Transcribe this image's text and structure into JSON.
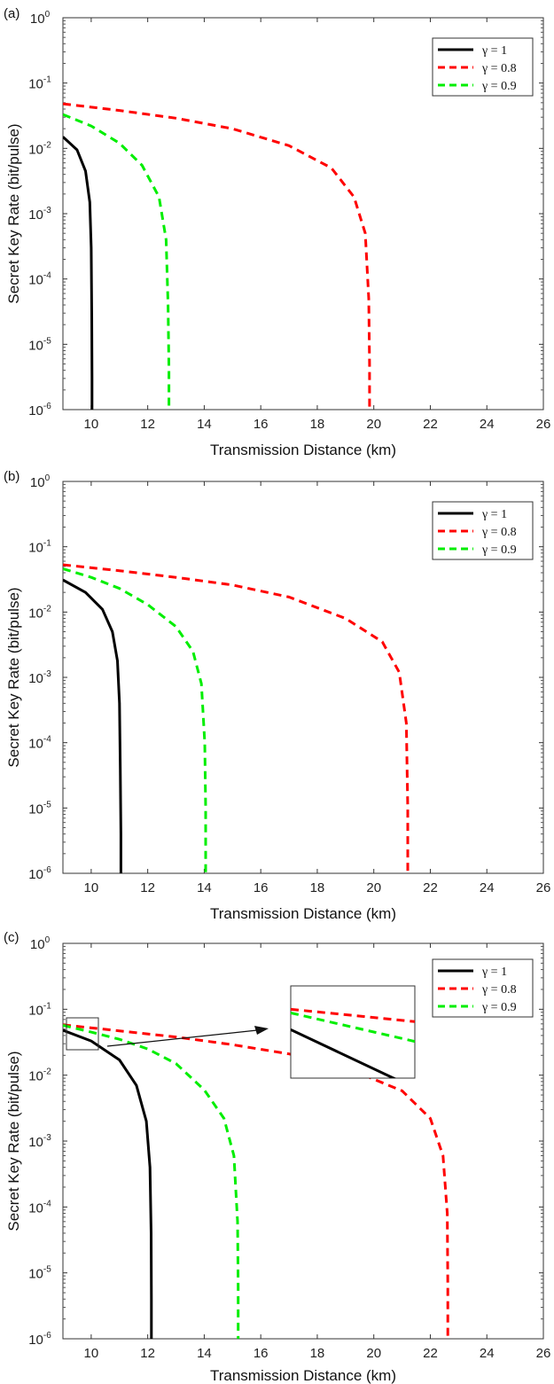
{
  "chart_data": [
    {
      "type": "line",
      "panel_label": "(a)",
      "xlabel": "Transmission Distance (km)",
      "ylabel": "Secret Key Rate (bit/pulse)",
      "xlim": [
        9,
        26
      ],
      "ylim": [
        1e-06,
        1
      ],
      "yscale": "log",
      "xticks": [
        10,
        12,
        14,
        16,
        18,
        20,
        22,
        24,
        26
      ],
      "yticks": [
        {
          "base": "10",
          "exp": "-6"
        },
        {
          "base": "10",
          "exp": "-5"
        },
        {
          "base": "10",
          "exp": "-4"
        },
        {
          "base": "10",
          "exp": "-3"
        },
        {
          "base": "10",
          "exp": "-2"
        },
        {
          "base": "10",
          "exp": "-1"
        },
        {
          "base": "10",
          "exp": "0"
        }
      ],
      "grid": false,
      "legend_position": "top-right",
      "series": [
        {
          "name": "γ = 1",
          "color": "#000000",
          "style": "solid",
          "x": [
            9,
            9.5,
            9.8,
            9.95,
            10.0,
            10.02,
            10.03,
            10.03
          ],
          "y": [
            0.015,
            0.0095,
            0.0045,
            0.0015,
            0.0003,
            3e-05,
            3e-06,
            1e-06
          ]
        },
        {
          "name": "γ = 0.8",
          "color": "#ff0000",
          "style": "dashed",
          "x": [
            9,
            11,
            13,
            15,
            17,
            18.5,
            19.3,
            19.7,
            19.82,
            19.85,
            19.85
          ],
          "y": [
            0.048,
            0.038,
            0.029,
            0.02,
            0.011,
            0.005,
            0.0018,
            0.0005,
            5e-05,
            5e-06,
            1e-06
          ]
        },
        {
          "name": "γ = 0.9",
          "color": "#00ee00",
          "style": "dashed",
          "x": [
            9,
            10,
            11,
            11.8,
            12.4,
            12.65,
            12.72,
            12.75,
            12.75
          ],
          "y": [
            0.033,
            0.022,
            0.012,
            0.0055,
            0.0018,
            0.0004,
            4e-05,
            4e-06,
            1e-06
          ]
        }
      ]
    },
    {
      "type": "line",
      "panel_label": "(b)",
      "xlabel": "Transmission Distance (km)",
      "ylabel": "Secret Key Rate (bit/pulse)",
      "xlim": [
        9,
        26
      ],
      "ylim": [
        1e-06,
        1
      ],
      "yscale": "log",
      "xticks": [
        10,
        12,
        14,
        16,
        18,
        20,
        22,
        24,
        26
      ],
      "yticks": [
        {
          "base": "10",
          "exp": "-6"
        },
        {
          "base": "10",
          "exp": "-5"
        },
        {
          "base": "10",
          "exp": "-4"
        },
        {
          "base": "10",
          "exp": "-3"
        },
        {
          "base": "10",
          "exp": "-2"
        },
        {
          "base": "10",
          "exp": "-1"
        },
        {
          "base": "10",
          "exp": "0"
        }
      ],
      "grid": false,
      "legend_position": "top-right",
      "series": [
        {
          "name": "γ = 1",
          "color": "#000000",
          "style": "solid",
          "x": [
            9,
            9.8,
            10.4,
            10.75,
            10.93,
            11.0,
            11.03,
            11.05,
            11.05
          ],
          "y": [
            0.031,
            0.02,
            0.011,
            0.005,
            0.0018,
            0.0004,
            4e-05,
            4e-06,
            1e-06
          ]
        },
        {
          "name": "γ = 0.8",
          "color": "#ff0000",
          "style": "dashed",
          "x": [
            9,
            11,
            13,
            15,
            17,
            19,
            20.3,
            20.9,
            21.15,
            21.2,
            21.2
          ],
          "y": [
            0.053,
            0.043,
            0.034,
            0.026,
            0.017,
            0.008,
            0.0035,
            0.0012,
            0.0002,
            1e-05,
            1e-06
          ]
        },
        {
          "name": "γ = 0.9",
          "color": "#00ee00",
          "style": "dashed",
          "x": [
            9,
            10,
            11,
            12,
            13,
            13.6,
            13.9,
            14.02,
            14.05,
            14.05
          ],
          "y": [
            0.046,
            0.034,
            0.023,
            0.013,
            0.006,
            0.0025,
            0.0008,
            0.0001,
            1e-05,
            1e-06
          ]
        }
      ]
    },
    {
      "type": "line",
      "panel_label": "(c)",
      "xlabel": "Transmission Distance (km)",
      "ylabel": "Secret Key Rate (bit/pulse)",
      "xlim": [
        9,
        26
      ],
      "ylim": [
        1e-06,
        1
      ],
      "yscale": "log",
      "xticks": [
        10,
        12,
        14,
        16,
        18,
        20,
        22,
        24,
        26
      ],
      "yticks": [
        {
          "base": "10",
          "exp": "-6"
        },
        {
          "base": "10",
          "exp": "-5"
        },
        {
          "base": "10",
          "exp": "-4"
        },
        {
          "base": "10",
          "exp": "-3"
        },
        {
          "base": "10",
          "exp": "-2"
        },
        {
          "base": "10",
          "exp": "-1"
        },
        {
          "base": "10",
          "exp": "0"
        }
      ],
      "grid": false,
      "legend_position": "top-right",
      "inset": {
        "x_range": [
          9.2,
          10.6
        ],
        "y_range": [
          0.025,
          0.075
        ]
      },
      "series": [
        {
          "name": "γ = 1",
          "color": "#000000",
          "style": "solid",
          "x": [
            9,
            10,
            11,
            11.6,
            11.95,
            12.08,
            12.12,
            12.13,
            12.13
          ],
          "y": [
            0.048,
            0.033,
            0.017,
            0.007,
            0.002,
            0.0004,
            4e-05,
            4e-06,
            1e-06
          ]
        },
        {
          "name": "γ = 0.8",
          "color": "#ff0000",
          "style": "dashed",
          "x": [
            9,
            11,
            13,
            15,
            17,
            19,
            21,
            22,
            22.45,
            22.6,
            22.62,
            22.62
          ],
          "y": [
            0.058,
            0.047,
            0.038,
            0.029,
            0.021,
            0.013,
            0.0058,
            0.0022,
            0.0006,
            8e-05,
            6e-06,
            1e-06
          ]
        },
        {
          "name": "γ = 0.9",
          "color": "#00ee00",
          "style": "dashed",
          "x": [
            9,
            10,
            11,
            12,
            13,
            14,
            14.7,
            15.05,
            15.18,
            15.2,
            15.2
          ],
          "y": [
            0.057,
            0.045,
            0.035,
            0.025,
            0.015,
            0.006,
            0.0022,
            0.0006,
            6e-05,
            6e-06,
            1e-06
          ]
        }
      ]
    }
  ]
}
